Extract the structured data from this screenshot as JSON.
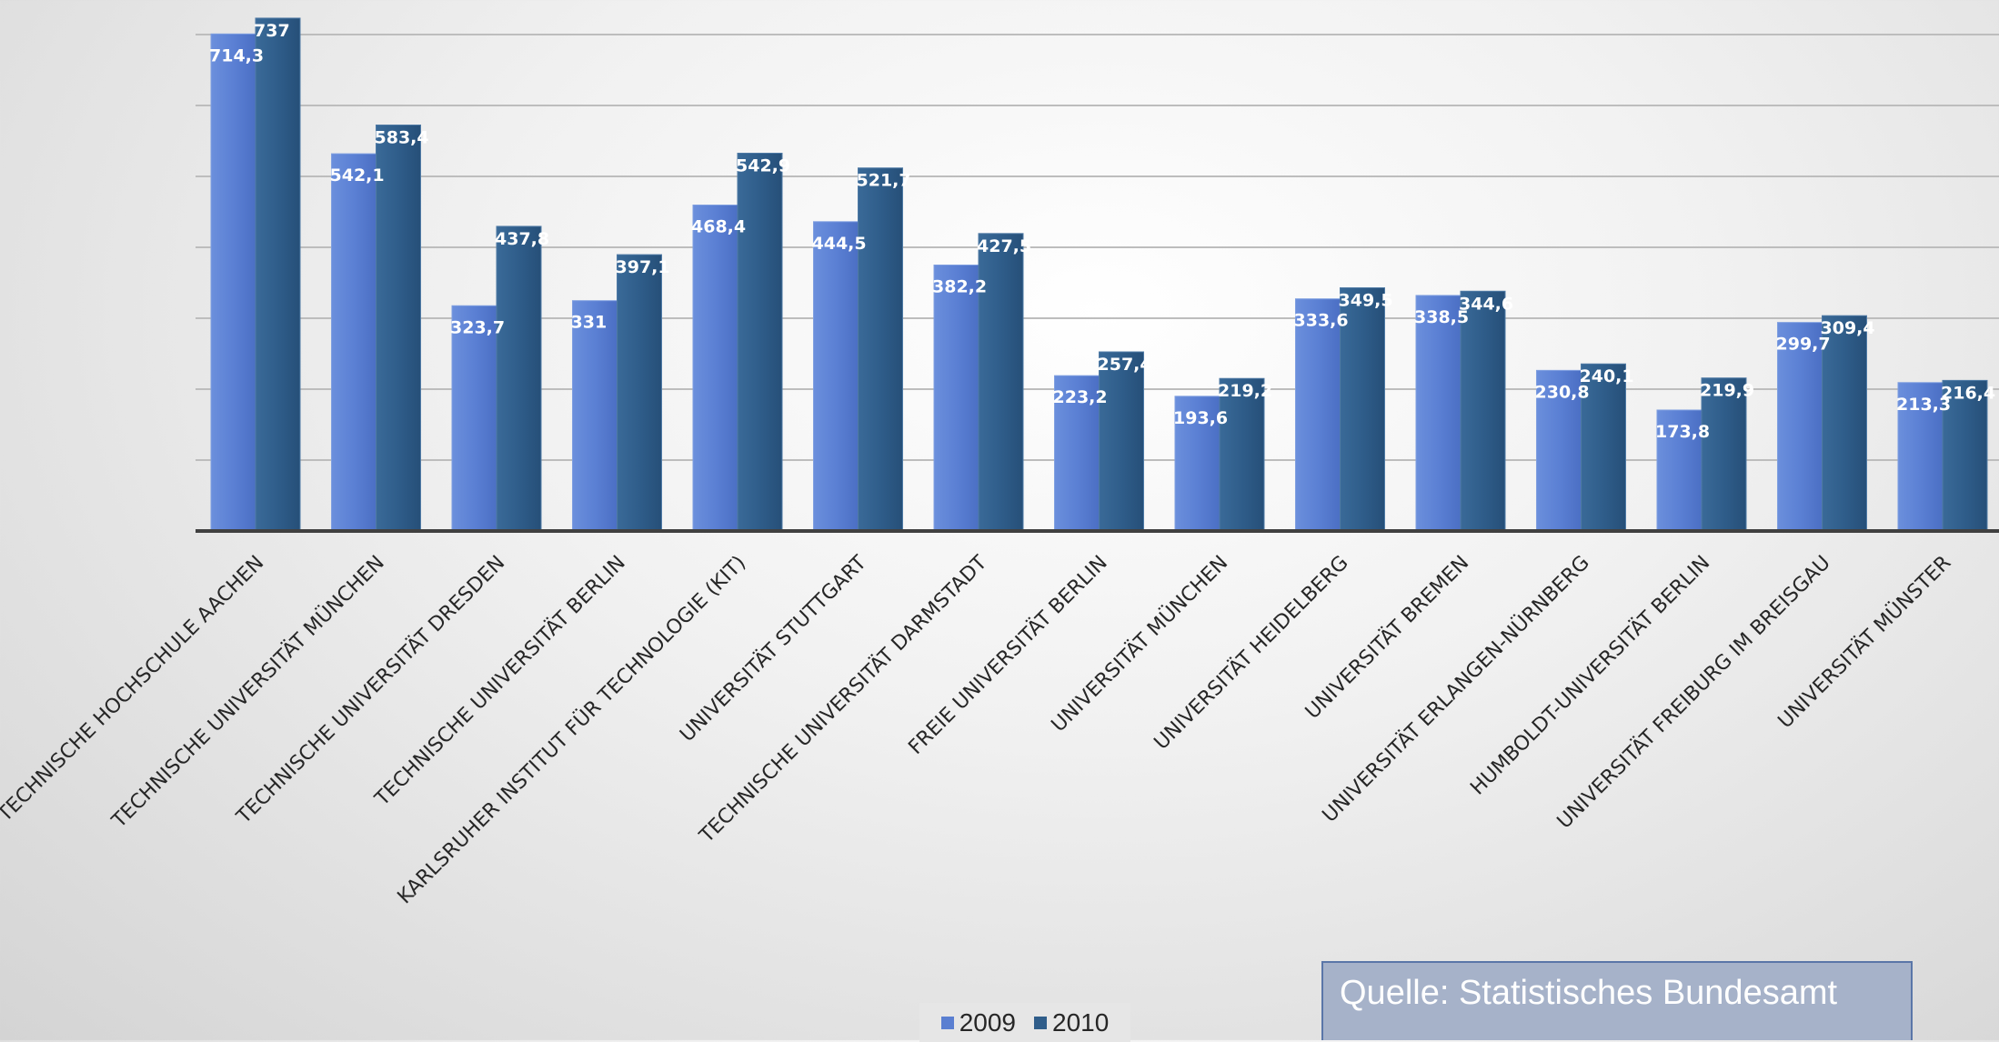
{
  "chart_data": {
    "type": "bar",
    "title": "",
    "xlabel": "",
    "ylabel": "",
    "ylim": [
      0,
      750
    ],
    "grid": true,
    "legend_position": "bottom",
    "categories": [
      "TECHNISCHE HOCHSCHULE AACHEN",
      "TECHNISCHE UNIVERSITÄT MÜNCHEN",
      "TECHNISCHE UNIVERSITÄT DRESDEN",
      "TECHNISCHE UNIVERSITÄT BERLIN",
      "KARLSRUHER INSTITUT FÜR TECHNOLOGIE (KIT)",
      "UNIVERSITÄT STUTTGART",
      "TECHNISCHE UNIVERSITÄT DARMSTADT",
      "FREIE UNIVERSITÄT BERLIN",
      "UNIVERSITÄT MÜNCHEN",
      "UNIVERSITÄT HEIDELBERG",
      "UNIVERSITÄT BREMEN",
      "UNIVERSITÄT ERLANGEN-NÜRNBERG",
      "HUMBOLDT-UNIVERSITÄT BERLIN",
      "UNIVERSITÄT FREIBURG IM BREISGAU",
      "UNIVERSITÄT MÜNSTER"
    ],
    "series": [
      {
        "name": "2009",
        "color": "#5a7fd1",
        "values": [
          714.3,
          542.1,
          323.7,
          331,
          468.4,
          444.5,
          382.2,
          223.2,
          193.6,
          333.6,
          338.5,
          230.8,
          173.8,
          299.7,
          213.3
        ],
        "labels": [
          "714,3",
          "542,1",
          "323,7",
          "331",
          "468,4",
          "444,5",
          "382,2",
          "223,2",
          "193,6",
          "333,6",
          "338,5",
          "230,8",
          "173,8",
          "299,7",
          "213,3"
        ]
      },
      {
        "name": "2010",
        "color": "#2f5d8a",
        "values": [
          737,
          583.4,
          437.8,
          397.1,
          542.9,
          521.7,
          427.5,
          257.4,
          219.2,
          349.5,
          344.6,
          240.1,
          219.9,
          309.4,
          216.4
        ],
        "labels": [
          "737",
          "583,4",
          "437,8",
          "397,1",
          "542,9",
          "521,7",
          "427,5",
          "257,4",
          "219,2",
          "349,5",
          "344,6",
          "240,1",
          "219,9",
          "309,4",
          "216,4"
        ]
      }
    ]
  },
  "source_note": "Quelle: Statistisches Bundesamt"
}
